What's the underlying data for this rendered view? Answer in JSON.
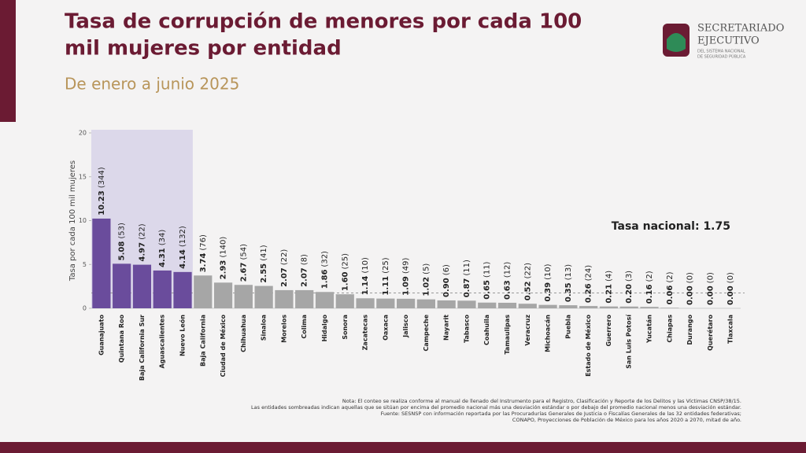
{
  "header": {
    "title_lines": [
      "Tasa de corrupción de menores por cada 100",
      "mil mujeres por entidad"
    ],
    "subtitle": "De enero a junio 2025"
  },
  "logo": {
    "name_lines": [
      "SECRETARIADO",
      "EJECUTIVO"
    ],
    "sub_lines": [
      "DEL SISTEMA NACIONAL",
      "DE SEGURIDAD PÚBLICA"
    ]
  },
  "chart_data": {
    "type": "bar",
    "y_label": "Tasa por cada 100 mil mujeres",
    "categories": [
      "Guanajuato",
      "Quintana Roo",
      "Baja California Sur",
      "Aguascalientes",
      "Nuevo León",
      "Baja California",
      "Ciudad de México",
      "Chihuahua",
      "Sinaloa",
      "Morelos",
      "Colima",
      "Hidalgo",
      "Sonora",
      "Zacatecas",
      "Oaxaca",
      "Jalisco",
      "Campeche",
      "Nayarit",
      "Tabasco",
      "Coahuila",
      "Tamaulipas",
      "Veracruz",
      "Michoacán",
      "Puebla",
      "Estado de México",
      "Guerrero",
      "San Luis Potosí",
      "Yucatán",
      "Chiapas",
      "Durango",
      "Querétaro",
      "Tlaxcala"
    ],
    "values": [
      10.23,
      5.08,
      4.97,
      4.31,
      4.14,
      3.74,
      2.93,
      2.67,
      2.55,
      2.07,
      2.07,
      1.86,
      1.6,
      1.14,
      1.11,
      1.09,
      1.02,
      0.9,
      0.87,
      0.65,
      0.63,
      0.52,
      0.39,
      0.35,
      0.26,
      0.21,
      0.2,
      0.16,
      0.06,
      0.0,
      0.0,
      0.0
    ],
    "value_labels": [
      "10.23",
      "5.08",
      "4.97",
      "4.31",
      "4.14",
      "3.74",
      "2.93",
      "2.67",
      "2.55",
      "2.07",
      "2.07",
      "1.86",
      "1.60",
      "1.14",
      "1.11",
      "1.09",
      "1.02",
      "0.90",
      "0.87",
      "0.65",
      "0.63",
      "0.52",
      "0.39",
      "0.35",
      "0.26",
      "0.21",
      "0.20",
      "0.16",
      "0.06",
      "0.00",
      "0.00",
      "0.00"
    ],
    "count_labels": [
      "(344)",
      "(53)",
      "(22)",
      "(34)",
      "(132)",
      "(76)",
      "(140)",
      "(54)",
      "(41)",
      "(22)",
      "(8)",
      "(32)",
      "(25)",
      "(10)",
      "(25)",
      "(49)",
      "(5)",
      "(6)",
      "(11)",
      "(11)",
      "(12)",
      "(22)",
      "(10)",
      "(13)",
      "(24)",
      "(4)",
      "(3)",
      "(2)",
      "(2)",
      "(0)",
      "(0)",
      "(0)"
    ],
    "color": "#a6a6a6",
    "highlight_color": "#6a4c9c",
    "highlighted": [
      0,
      1,
      2,
      3,
      4
    ],
    "ylim": [
      0,
      20
    ],
    "yticks": [
      0,
      5,
      10,
      15,
      20
    ],
    "reference": {
      "value": 1.75,
      "label": "Tasa nacional: 1.75"
    }
  },
  "notes": [
    "Nota: El conteo se realiza conforme al manual de llenado del Instrumento para el Registro, Clasificación y Reporte de los Delitos y las Víctimas CNSP/38/15.",
    "Las entidades sombreadas indican aquellas que se sitúan por encima del promedio nacional más una desviación estándar o por debajo del promedio nacional menos una desviación estándar.",
    "Fuente: SESNSP con información reportada por las Procuradurías Generales de Justicia o Fiscalías Generales de las 32 entidades federativas;",
    "CONAPO, Proyecciones de Población de México para los años 2020 a 2070, mitad de año."
  ]
}
